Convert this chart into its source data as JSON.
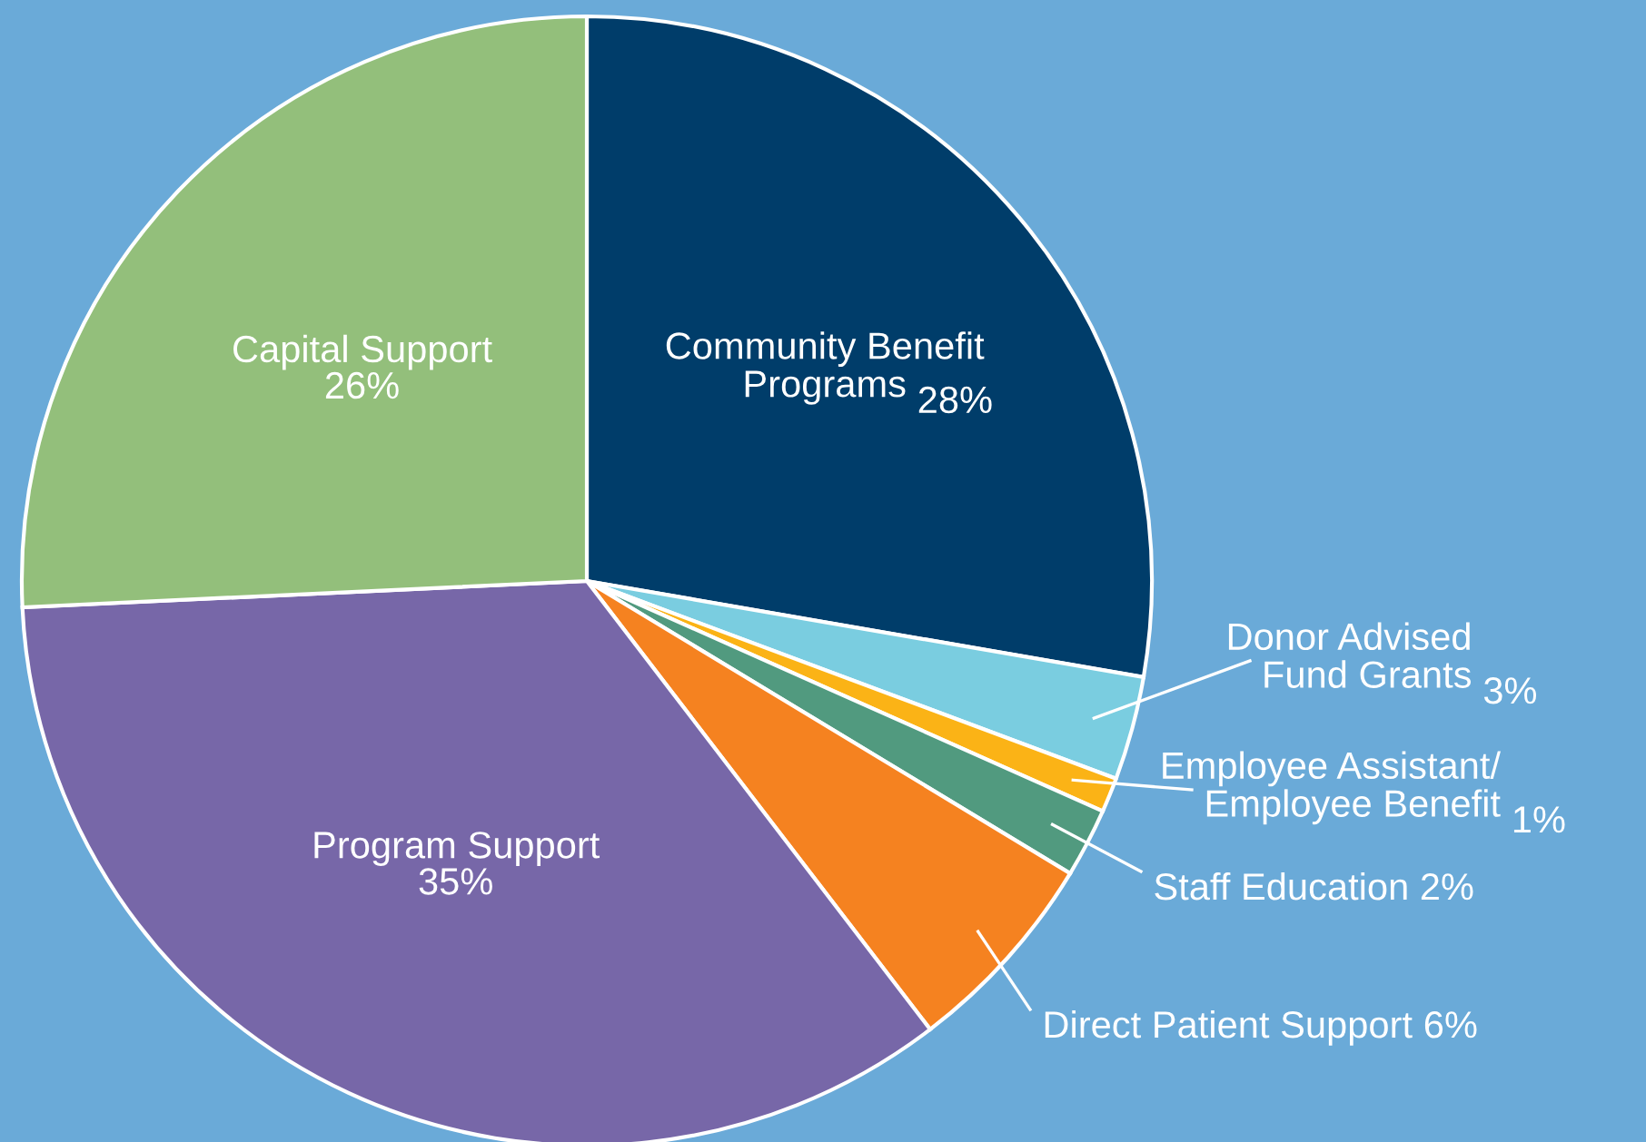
{
  "chart_data": {
    "type": "pie",
    "categories": [
      "Community Benefit\nPrograms",
      "Donor Advised\nFund Grants",
      "Employee Assistant/\nEmployee Benefit",
      "Staff Education",
      "Direct Patient Support",
      "Program Support",
      "Capital Support"
    ],
    "values": [
      28,
      3,
      1,
      2,
      6,
      35,
      26
    ],
    "colors": [
      "#003d6a",
      "#7acde0",
      "#fbb316",
      "#519a7f",
      "#f58220",
      "#7767a8",
      "#93bf7b"
    ],
    "value_labels": [
      "28%",
      "3%",
      "1%",
      "2%",
      "6%",
      "35%",
      "26%"
    ]
  }
}
